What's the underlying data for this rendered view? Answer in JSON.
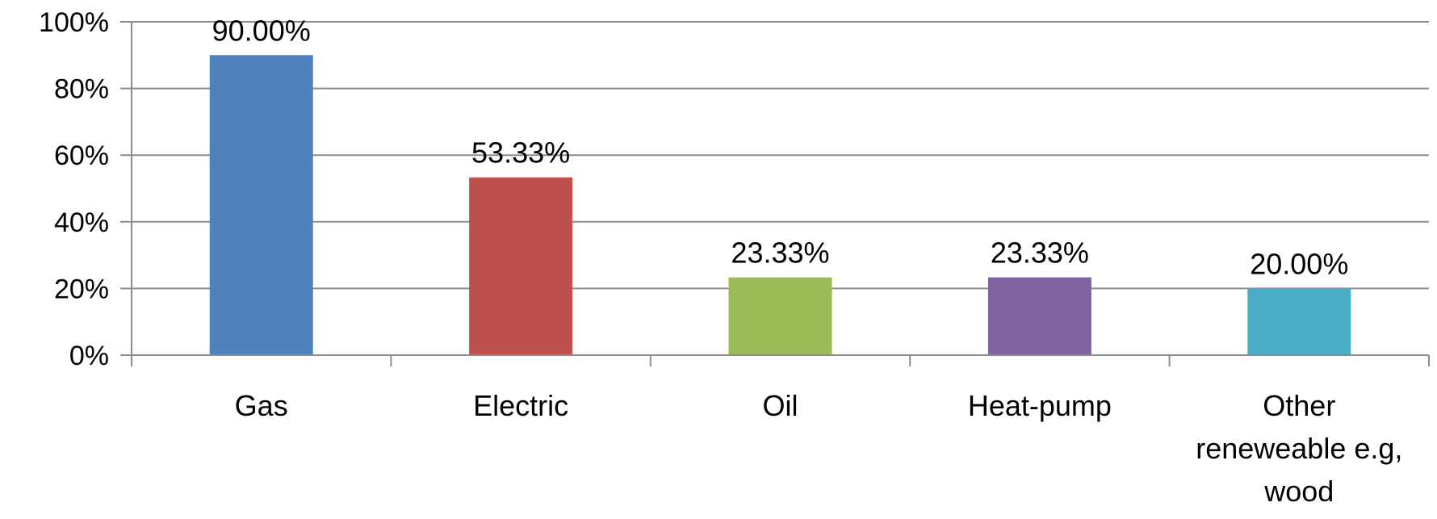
{
  "chart_data": {
    "type": "bar",
    "categories": [
      [
        "Gas"
      ],
      [
        "Electric"
      ],
      [
        "Oil"
      ],
      [
        "Heat-pump"
      ],
      [
        "Other",
        "reneweable e.g,",
        "wood"
      ]
    ],
    "values": [
      90.0,
      53.33,
      23.33,
      23.33,
      20.0
    ],
    "data_labels": [
      "90.00%",
      "53.33%",
      "23.33%",
      "23.33%",
      "20.00%"
    ],
    "colors": [
      "#4F81BD",
      "#C0504D",
      "#9BBB59",
      "#8064A2",
      "#4BACC6"
    ],
    "ylim": [
      0,
      100
    ],
    "yticks": [
      0,
      20,
      40,
      60,
      80,
      100
    ],
    "ytick_labels": [
      "0%",
      "20%",
      "40%",
      "60%",
      "80%",
      "100%"
    ],
    "grid": true,
    "legend": "none",
    "title": "",
    "xlabel": "",
    "ylabel": ""
  }
}
